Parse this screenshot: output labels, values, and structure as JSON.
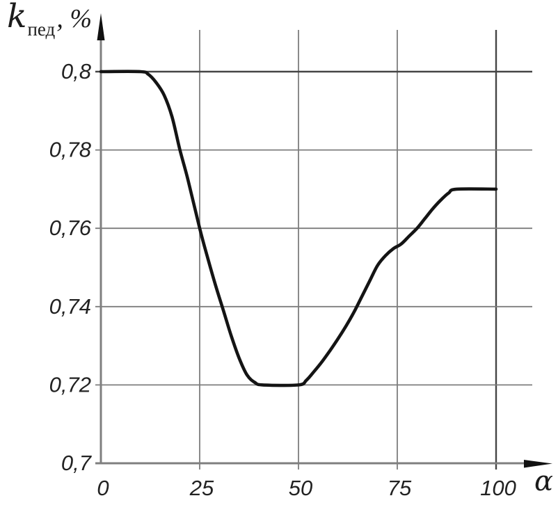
{
  "chart_data": {
    "type": "line",
    "title": "",
    "x_label": "α",
    "y_label": {
      "symbol": "k",
      "subscript": "пед",
      "unit": ", %"
    },
    "xlim": [
      0,
      100
    ],
    "ylim": [
      0.7,
      0.8
    ],
    "grid": true,
    "legend": "none",
    "x_ticks": {
      "values": [
        0,
        25,
        50,
        75,
        100
      ],
      "labels": [
        "0",
        "25",
        "50",
        "75",
        "100"
      ]
    },
    "y_ticks": {
      "values": [
        0.7,
        0.72,
        0.74,
        0.76,
        0.78,
        0.8
      ],
      "labels": [
        "0,7",
        "0,72",
        "0,74",
        "0,76",
        "0,78",
        "0,8"
      ]
    },
    "series": [
      {
        "name": "k_ped vs alpha",
        "points": [
          [
            0,
            0.8
          ],
          [
            10,
            0.8
          ],
          [
            12,
            0.7993
          ],
          [
            14,
            0.7972
          ],
          [
            16,
            0.794
          ],
          [
            18,
            0.7885
          ],
          [
            20,
            0.78
          ],
          [
            22,
            0.7725
          ],
          [
            25,
            0.76
          ],
          [
            27,
            0.7525
          ],
          [
            29,
            0.7455
          ],
          [
            31,
            0.739
          ],
          [
            33,
            0.7325
          ],
          [
            35,
            0.7268
          ],
          [
            37,
            0.7225
          ],
          [
            39,
            0.7206
          ],
          [
            41,
            0.72
          ],
          [
            50,
            0.72
          ],
          [
            52,
            0.7212
          ],
          [
            54,
            0.7235
          ],
          [
            56,
            0.726
          ],
          [
            58,
            0.7288
          ],
          [
            60,
            0.7318
          ],
          [
            62,
            0.735
          ],
          [
            64,
            0.7385
          ],
          [
            66,
            0.7425
          ],
          [
            68,
            0.7465
          ],
          [
            70,
            0.7505
          ],
          [
            72,
            0.753
          ],
          [
            74,
            0.7548
          ],
          [
            76,
            0.756
          ],
          [
            78,
            0.758
          ],
          [
            80,
            0.76
          ],
          [
            82,
            0.7625
          ],
          [
            84,
            0.765
          ],
          [
            86,
            0.7672
          ],
          [
            88,
            0.769
          ],
          [
            90,
            0.77
          ],
          [
            100,
            0.77
          ]
        ]
      }
    ],
    "colors": {
      "curve": "#141414",
      "grid": "#7d7d7d",
      "grid_emphasis": "#454545",
      "axis": "#7f7f7f",
      "arrow": "#111111",
      "text": "#222222"
    }
  }
}
